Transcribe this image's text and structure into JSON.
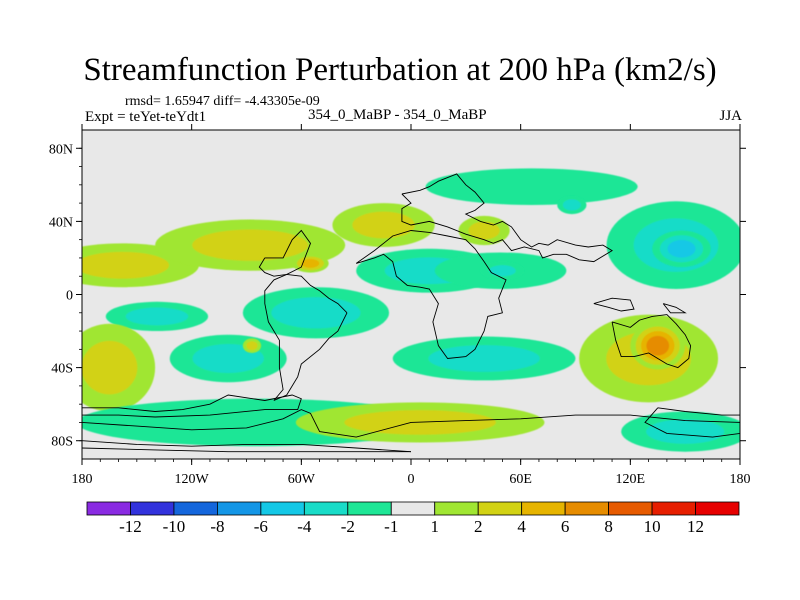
{
  "chart_data": {
    "type": "heatmap",
    "title": "Streamfunction Perturbation at 200 hPa (km2/s)",
    "stats_text": "rmsd= 1.65947  diff= -4.43305e-09",
    "left_label": "Expt = teYet-teYdt1",
    "center_label": "354_0_MaBP - 354_0_MaBP",
    "right_label": "JJA",
    "xlim": [
      -180,
      180
    ],
    "ylim": [
      -90,
      90
    ],
    "x_ticks": [
      {
        "value": -180,
        "label": "180"
      },
      {
        "value": -120,
        "label": "120W"
      },
      {
        "value": -60,
        "label": "60W"
      },
      {
        "value": 0,
        "label": "0"
      },
      {
        "value": 60,
        "label": "60E"
      },
      {
        "value": 120,
        "label": "120E"
      },
      {
        "value": 180,
        "label": "180"
      }
    ],
    "y_ticks": [
      {
        "value": 80,
        "label": "80N"
      },
      {
        "value": 40,
        "label": "40N"
      },
      {
        "value": 0,
        "label": "0"
      },
      {
        "value": -40,
        "label": "40S"
      },
      {
        "value": -80,
        "label": "80S"
      }
    ],
    "colorbar": {
      "colors": [
        "#8a2be2",
        "#3232dc",
        "#1466dc",
        "#1496e6",
        "#14c8e6",
        "#19dcc8",
        "#1ee696",
        "#e8e8e8",
        "#a0e632",
        "#d2d214",
        "#e6b400",
        "#e68c00",
        "#e65a00",
        "#e61e00",
        "#e60000"
      ],
      "labels": [
        "-12",
        "-10",
        "-8",
        "-6",
        "-4",
        "-2",
        "-1",
        "1",
        "2",
        "4",
        "6",
        "8",
        "10",
        "12"
      ]
    },
    "background_color": "#e8e8e8",
    "features": [
      {
        "lon": -158,
        "lat": 16,
        "rx": 42,
        "ry": 12,
        "v": 2.5
      },
      {
        "lon": -88,
        "lat": 27,
        "rx": 52,
        "ry": 14,
        "v": 3.5
      },
      {
        "lon": -55,
        "lat": 17,
        "rx": 10,
        "ry": 5,
        "v": 5.2
      },
      {
        "lon": -15,
        "lat": 38,
        "rx": 28,
        "ry": 12,
        "v": 2.5
      },
      {
        "lon": 40,
        "lat": 35,
        "rx": 14,
        "ry": 8,
        "v": 3.0
      },
      {
        "lon": 66,
        "lat": 59,
        "rx": 58,
        "ry": 10,
        "v": -1.6
      },
      {
        "lon": 88,
        "lat": 49,
        "rx": 8,
        "ry": 5,
        "v": -3.2
      },
      {
        "lon": 10,
        "lat": 13,
        "rx": 40,
        "ry": 12,
        "v": -2.0
      },
      {
        "lon": 49,
        "lat": 13,
        "rx": 36,
        "ry": 10,
        "v": -1.6
      },
      {
        "lon": 50,
        "lat": 13,
        "rx": 12,
        "ry": 5,
        "v": -3.3
      },
      {
        "lon": 145,
        "lat": 27,
        "rx": 38,
        "ry": 24,
        "v": -2.2
      },
      {
        "lon": 148,
        "lat": 25,
        "rx": 16,
        "ry": 10,
        "v": -5.0
      },
      {
        "lon": -139,
        "lat": -12,
        "rx": 28,
        "ry": 8,
        "v": -2.4
      },
      {
        "lon": -100,
        "lat": -35,
        "rx": 32,
        "ry": 13,
        "v": -2.0
      },
      {
        "lon": -52,
        "lat": -10,
        "rx": 40,
        "ry": 14,
        "v": -2.4
      },
      {
        "lon": 40,
        "lat": -35,
        "rx": 50,
        "ry": 12,
        "v": -2.0
      },
      {
        "lon": 130,
        "lat": -35,
        "rx": 38,
        "ry": 24,
        "v": 3.0
      },
      {
        "lon": 135,
        "lat": -28,
        "rx": 15,
        "ry": 13,
        "v": 6.0
      },
      {
        "lon": -165,
        "lat": -40,
        "rx": 25,
        "ry": 24,
        "v": 3.5
      },
      {
        "lon": -85,
        "lat": -70,
        "rx": 98,
        "ry": 13,
        "v": -1.6
      },
      {
        "lon": 5,
        "lat": -70,
        "rx": 68,
        "ry": 11,
        "v": 3.0
      },
      {
        "lon": 150,
        "lat": -75,
        "rx": 35,
        "ry": 11,
        "v": -2.0
      },
      {
        "lon": -87,
        "lat": -28,
        "rx": 5,
        "ry": 4,
        "v": 2.0
      }
    ],
    "coastlines": [
      [
        [
          -5,
          55
        ],
        [
          5,
          57
        ],
        [
          10,
          59
        ],
        [
          15,
          62
        ],
        [
          25,
          66
        ],
        [
          30,
          60
        ],
        [
          35,
          56
        ],
        [
          40,
          50
        ],
        [
          35,
          46
        ],
        [
          30,
          44
        ],
        [
          38,
          40
        ],
        [
          45,
          38
        ],
        [
          50,
          40
        ],
        [
          55,
          37
        ],
        [
          60,
          30
        ],
        [
          66,
          26
        ],
        [
          70,
          28
        ],
        [
          75,
          27
        ],
        [
          80,
          30
        ],
        [
          90,
          27
        ],
        [
          97,
          26
        ],
        [
          105,
          27
        ],
        [
          110,
          24
        ],
        [
          100,
          18
        ],
        [
          92,
          19
        ],
        [
          85,
          22
        ],
        [
          78,
          22
        ],
        [
          72,
          20
        ],
        [
          70,
          24
        ],
        [
          62,
          26
        ],
        [
          55,
          24
        ],
        [
          50,
          30
        ],
        [
          45,
          28
        ],
        [
          40,
          30
        ],
        [
          30,
          33
        ],
        [
          20,
          37
        ],
        [
          10,
          40
        ],
        [
          0,
          38
        ],
        [
          -5,
          40
        ],
        [
          -5,
          47
        ],
        [
          0,
          50
        ],
        [
          -5,
          55
        ]
      ],
      [
        [
          -30,
          17
        ],
        [
          -20,
          20
        ],
        [
          -15,
          22
        ],
        [
          -10,
          18
        ],
        [
          -8,
          10
        ],
        [
          -2,
          5
        ],
        [
          5,
          4
        ],
        [
          10,
          3
        ],
        [
          15,
          -5
        ],
        [
          12,
          -15
        ],
        [
          15,
          -28
        ],
        [
          20,
          -35
        ],
        [
          30,
          -34
        ],
        [
          35,
          -30
        ],
        [
          40,
          -20
        ],
        [
          42,
          -12
        ],
        [
          50,
          -10
        ],
        [
          48,
          -2
        ],
        [
          52,
          8
        ],
        [
          44,
          12
        ],
        [
          40,
          18
        ],
        [
          35,
          25
        ],
        [
          30,
          30
        ],
        [
          20,
          32
        ],
        [
          10,
          34
        ],
        [
          0,
          35
        ],
        [
          -10,
          32
        ],
        [
          -15,
          28
        ],
        [
          -20,
          24
        ],
        [
          -30,
          17
        ]
      ],
      [
        [
          -35,
          -10
        ],
        [
          -40,
          -5
        ],
        [
          -45,
          -2
        ],
        [
          -50,
          2
        ],
        [
          -55,
          5
        ],
        [
          -60,
          10
        ],
        [
          -68,
          11
        ],
        [
          -75,
          8
        ],
        [
          -80,
          2
        ],
        [
          -80,
          -5
        ],
        [
          -78,
          -15
        ],
        [
          -72,
          -25
        ],
        [
          -72,
          -40
        ],
        [
          -70,
          -52
        ],
        [
          -75,
          -58
        ],
        [
          -68,
          -55
        ],
        [
          -62,
          -45
        ],
        [
          -60,
          -38
        ],
        [
          -50,
          -30
        ],
        [
          -45,
          -24
        ],
        [
          -40,
          -20
        ],
        [
          -35,
          -10
        ]
      ],
      [
        [
          -80,
          20
        ],
        [
          -70,
          20
        ],
        [
          -65,
          30
        ],
        [
          -60,
          35
        ],
        [
          -55,
          28
        ],
        [
          -60,
          15
        ],
        [
          -68,
          11
        ],
        [
          -75,
          10
        ],
        [
          -80,
          12
        ],
        [
          -83,
          15
        ],
        [
          -80,
          20
        ]
      ],
      [
        [
          110,
          -15
        ],
        [
          120,
          -18
        ],
        [
          125,
          -14
        ],
        [
          132,
          -12
        ],
        [
          140,
          -11
        ],
        [
          145,
          -16
        ],
        [
          150,
          -22
        ],
        [
          153,
          -28
        ],
        [
          152,
          -35
        ],
        [
          146,
          -40
        ],
        [
          140,
          -38
        ],
        [
          135,
          -35
        ],
        [
          130,
          -32
        ],
        [
          122,
          -34
        ],
        [
          115,
          -34
        ],
        [
          112,
          -25
        ],
        [
          110,
          -15
        ]
      ],
      [
        [
          100,
          -5
        ],
        [
          108,
          -7
        ],
        [
          115,
          -9
        ],
        [
          122,
          -8
        ],
        [
          120,
          -3
        ],
        [
          110,
          -2
        ],
        [
          100,
          -5
        ]
      ],
      [
        [
          138,
          -5
        ],
        [
          145,
          -7
        ],
        [
          150,
          -10
        ],
        [
          142,
          -10
        ],
        [
          138,
          -5
        ]
      ],
      [
        [
          -180,
          -70
        ],
        [
          -150,
          -72
        ],
        [
          -120,
          -74
        ],
        [
          -90,
          -73
        ],
        [
          -70,
          -68
        ],
        [
          -60,
          -63
        ],
        [
          -55,
          -65
        ],
        [
          -50,
          -75
        ],
        [
          -30,
          -78
        ],
        [
          0,
          -70
        ],
        [
          30,
          -69
        ],
        [
          60,
          -68
        ],
        [
          90,
          -66
        ],
        [
          120,
          -66
        ],
        [
          150,
          -69
        ],
        [
          180,
          -70
        ]
      ],
      [
        [
          135,
          -62
        ],
        [
          150,
          -64
        ],
        [
          170,
          -66
        ],
        [
          180,
          -66
        ],
        [
          180,
          -76
        ],
        [
          165,
          -78
        ],
        [
          140,
          -76
        ],
        [
          128,
          -70
        ],
        [
          135,
          -62
        ]
      ],
      [
        [
          -180,
          -62
        ],
        [
          -160,
          -62
        ],
        [
          -140,
          -64
        ],
        [
          -125,
          -63
        ],
        [
          -110,
          -60
        ],
        [
          -100,
          -55
        ],
        [
          -80,
          -58
        ],
        [
          -65,
          -55
        ],
        [
          -60,
          -57
        ],
        [
          -62,
          -63
        ],
        [
          -80,
          -63
        ],
        [
          -110,
          -66
        ],
        [
          -140,
          -67
        ],
        [
          -160,
          -66
        ],
        [
          -180,
          -66
        ]
      ],
      [
        [
          -180,
          -80
        ],
        [
          -150,
          -82
        ],
        [
          -120,
          -83
        ],
        [
          -90,
          -82
        ],
        [
          -60,
          -82
        ],
        [
          -30,
          -84
        ],
        [
          0,
          -86
        ]
      ],
      [
        [
          -180,
          -84
        ],
        [
          -140,
          -85
        ],
        [
          -100,
          -86
        ],
        [
          -60,
          -86
        ],
        [
          -20,
          -86
        ],
        [
          0,
          -86
        ]
      ]
    ]
  }
}
